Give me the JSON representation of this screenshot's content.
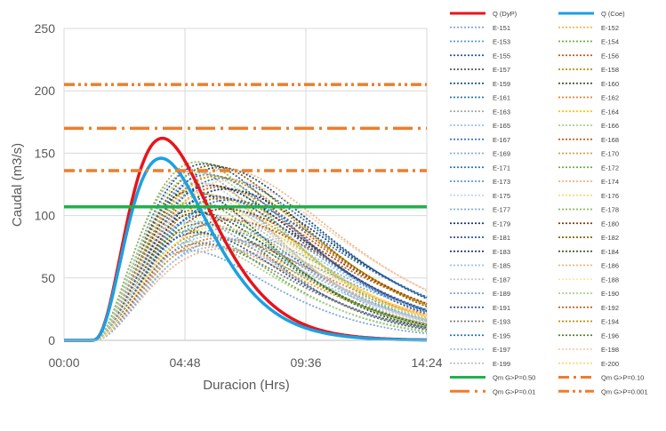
{
  "chart_data": {
    "type": "line",
    "title": "",
    "xlabel": "Duracion (Hrs)",
    "ylabel": "Caudal (m3/s)",
    "x_unit": "hours",
    "xlim": [
      0,
      14.4
    ],
    "ylim": [
      0,
      250
    ],
    "x_ticks": [
      {
        "value": 0,
        "label": "00:00"
      },
      {
        "value": 4.8,
        "label": "04:48"
      },
      {
        "value": 9.6,
        "label": "09:36"
      },
      {
        "value": 14.4,
        "label": "14:24"
      }
    ],
    "y_ticks": [
      0,
      50,
      100,
      150,
      200,
      250
    ],
    "grid": true,
    "legend_position": "right",
    "series": [
      {
        "name": "Q (DyP)",
        "color": "#e8141c",
        "style": "solid",
        "peak": 162,
        "peak_time": 3.9
      },
      {
        "name": "Q (Coe)",
        "color": "#1ba1e2",
        "style": "solid",
        "peak": 146,
        "peak_time": 3.85
      },
      {
        "name": "Qm G>P=0.50",
        "color": "#1fb14b",
        "style": "solid",
        "constant": 107
      },
      {
        "name": "Qm G>P=0.10",
        "color": "#ee7d2c",
        "style": "dashdot",
        "constant": 136
      },
      {
        "name": "Qm G>P=0.01",
        "color": "#ee7d2c",
        "style": "longdashdot",
        "constant": 170
      },
      {
        "name": "Qm G>P=0.001",
        "color": "#ee7d2c",
        "style": "dashdotdot",
        "constant": 205
      }
    ],
    "ensemble": {
      "names": [
        "E-151",
        "E-152",
        "E-153",
        "E-154",
        "E-155",
        "E-156",
        "E-157",
        "E-158",
        "E-159",
        "E-160",
        "E-161",
        "E-162",
        "E-163",
        "E-164",
        "E-165",
        "E-166",
        "E-167",
        "E-168",
        "E-169",
        "E-170",
        "E-171",
        "E-172",
        "E-173",
        "E-174",
        "E-175",
        "E-176",
        "E-177",
        "E-178",
        "E-179",
        "E-180",
        "E-181",
        "E-182",
        "E-183",
        "E-184",
        "E-185",
        "E-186",
        "E-187",
        "E-188",
        "E-189",
        "E-190",
        "E-191",
        "E-192",
        "E-193",
        "E-194",
        "E-195",
        "E-196",
        "E-197",
        "E-198",
        "E-199",
        "E-200"
      ],
      "colors": [
        "#7fa6d9",
        "#f4b942",
        "#5b9bd5",
        "#70ad47",
        "#2f5597",
        "#c55a11",
        "#595959",
        "#bf9000",
        "#1f4e79",
        "#375623",
        "#2e75b6",
        "#ed7d31",
        "#a5a5a5",
        "#ffc000",
        "#9dc3e6",
        "#a9d18e",
        "#4472c4",
        "#c55a11",
        "#8faadc",
        "#d6a444",
        "#2e75b6",
        "#70ad47",
        "#5b9bd5",
        "#f4b183",
        "#bdd7ee",
        "#ffd966",
        "#7fb3d5",
        "#8fbc5a",
        "#203864",
        "#843c0c",
        "#305496",
        "#806000",
        "#1f3864",
        "#385723",
        "#9dc3e6",
        "#f4b183",
        "#c9c9c9",
        "#ffe699",
        "#7fa6d9",
        "#a9d18e",
        "#2f5597",
        "#c55a11",
        "#808080",
        "#bf9000",
        "#2e75b6",
        "#548235",
        "#9dc3e6",
        "#f8cbad",
        "#bfbfbf",
        "#ffd966"
      ],
      "peak_range": [
        72,
        143
      ],
      "peak_time_range": [
        5.0,
        6.6
      ]
    }
  }
}
